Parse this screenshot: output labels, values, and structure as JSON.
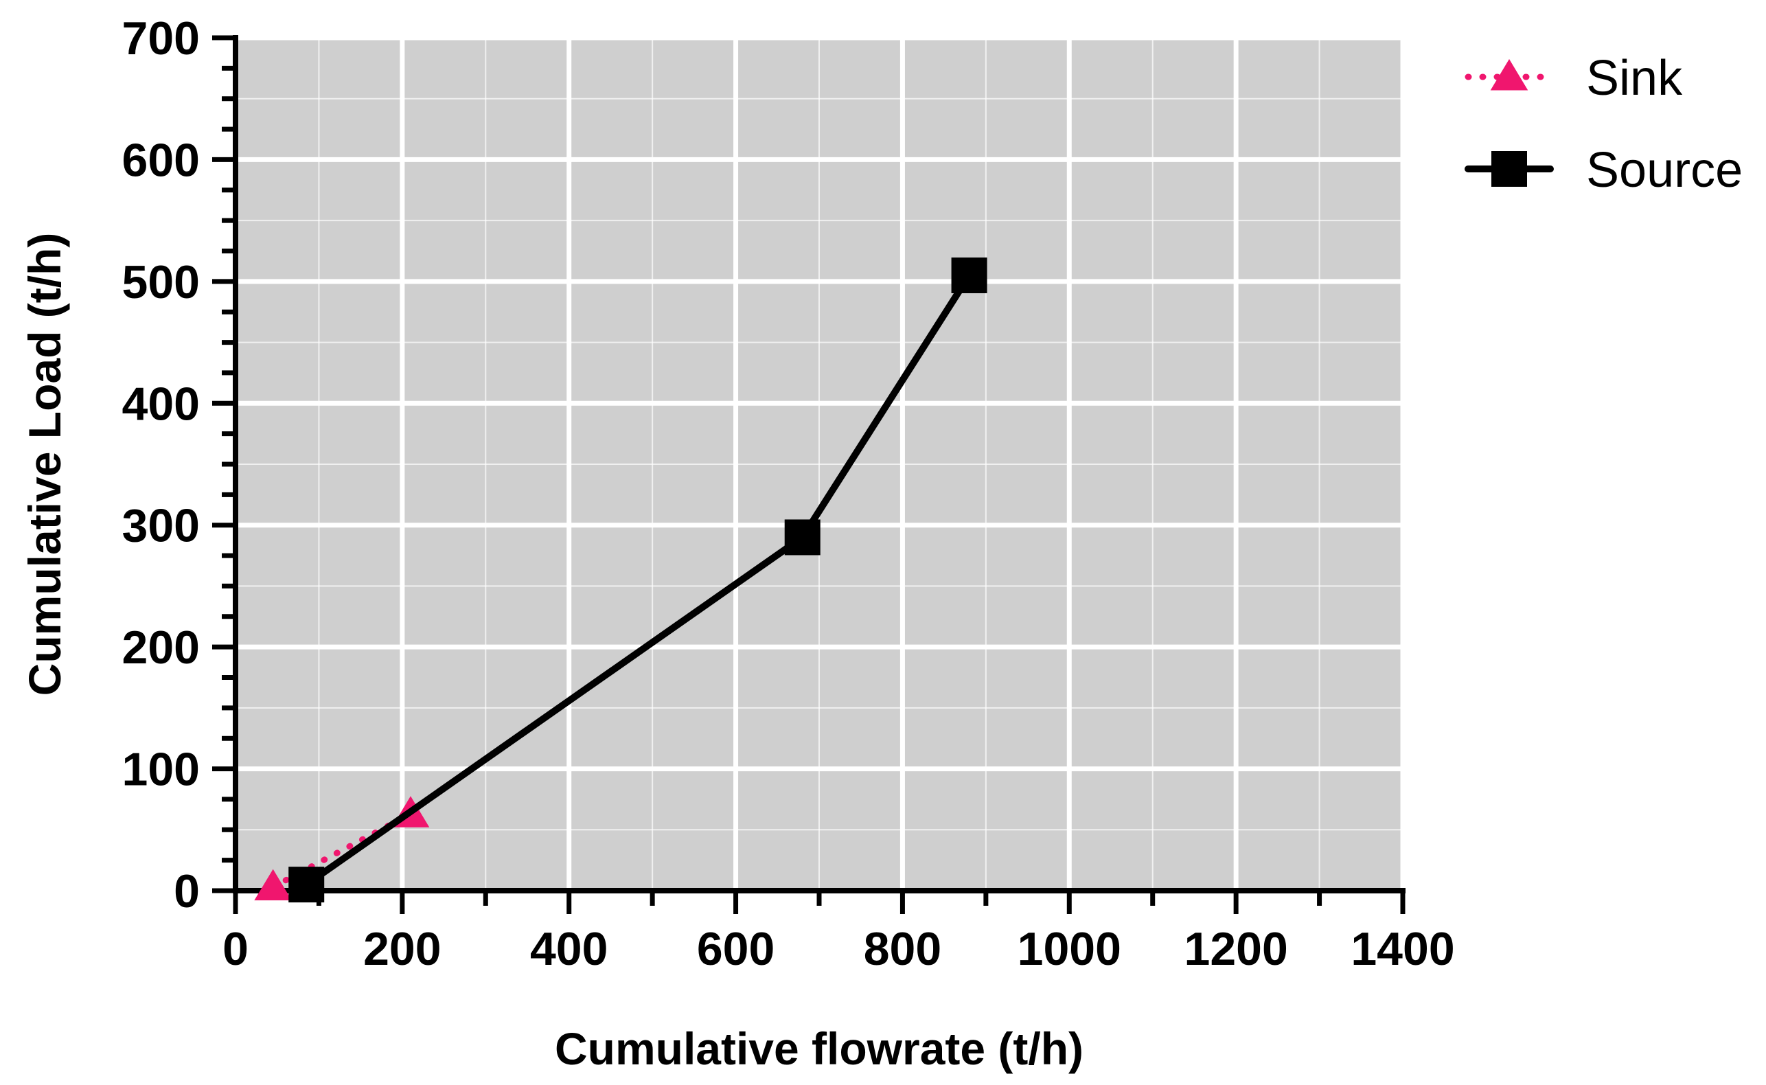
{
  "chart_data": {
    "type": "line",
    "title": "",
    "xlabel": "Cumulative flowrate (t/h)",
    "ylabel": "Cumulative Load (t/h)",
    "xlim": [
      0,
      1400
    ],
    "ylim": [
      0,
      700
    ],
    "x_ticks": [
      0,
      200,
      400,
      600,
      800,
      1000,
      1200,
      1400
    ],
    "x_tick_labels": [
      "0",
      "200",
      "400",
      "600",
      "800",
      "1000",
      "1200",
      "1400"
    ],
    "y_ticks": [
      0,
      100,
      200,
      300,
      400,
      500,
      600,
      700
    ],
    "y_tick_labels": [
      "0",
      "100",
      "200",
      "300",
      "400",
      "500",
      "600",
      "700"
    ],
    "grid": true,
    "legend_position": "right",
    "series": [
      {
        "name": "Sink",
        "marker": "triangle",
        "line_style": "dotted",
        "color": "#f0166e",
        "x": [
          45,
          210
        ],
        "y": [
          3,
          63
        ]
      },
      {
        "name": "Source",
        "marker": "square",
        "line_style": "solid",
        "color": "#000000",
        "x": [
          85,
          680,
          880
        ],
        "y": [
          5,
          290,
          505
        ]
      }
    ]
  },
  "colors": {
    "plot_background": "#cfcfcf",
    "grid": "#ffffff",
    "axis": "#000000"
  }
}
